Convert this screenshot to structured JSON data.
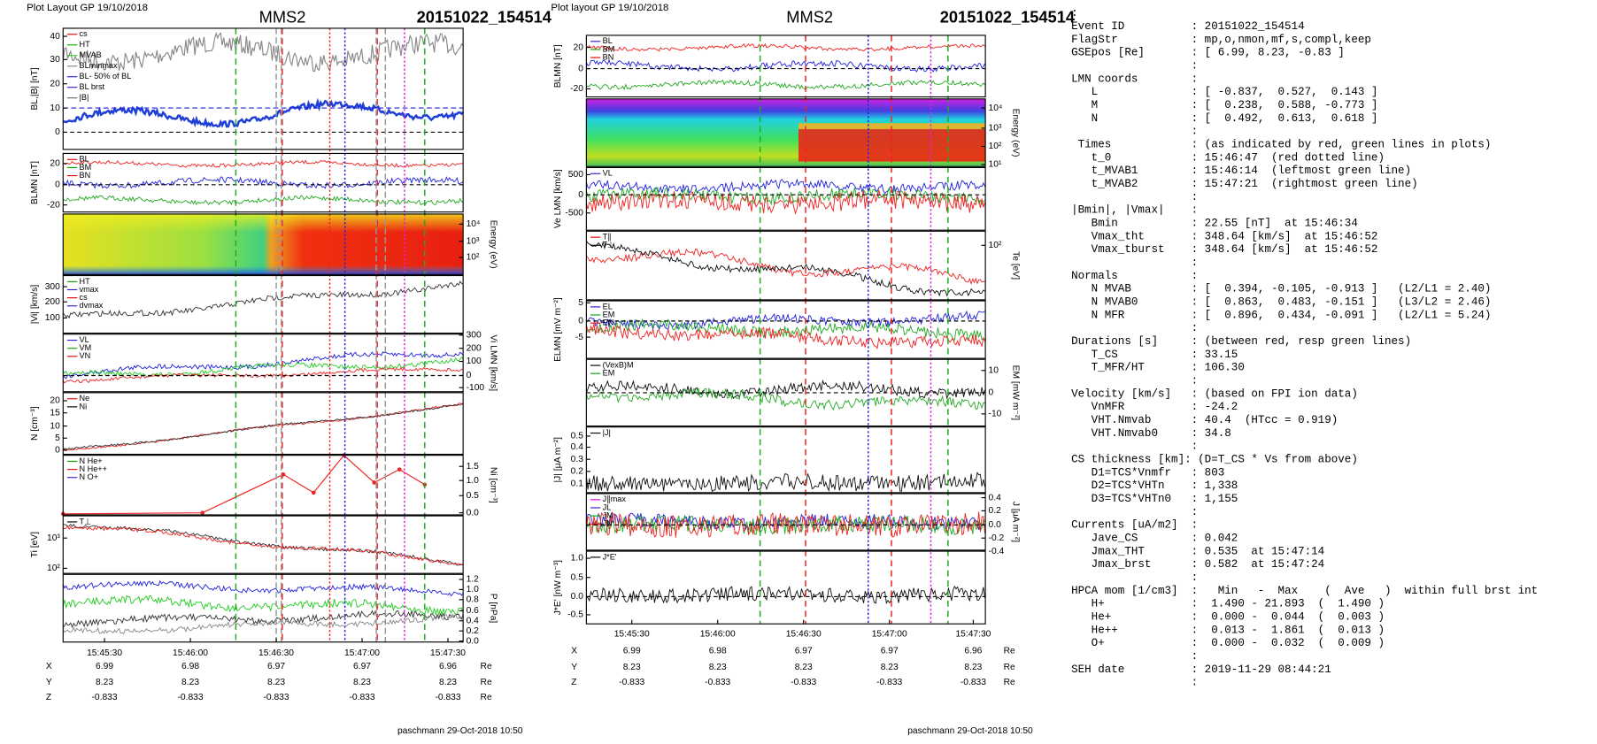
{
  "left_figure": {
    "header": {
      "layout": "Plot Layout GP 19/10/2018",
      "probe": "MMS2",
      "event": "20151022_154514"
    },
    "panels": [
      {
        "label": "BL,|B| [nT]",
        "ticks": [
          "40",
          "30",
          "20",
          "10",
          "0"
        ],
        "legend": [
          {
            "text": "cs",
            "color": "#e00"
          },
          {
            "text": "HT",
            "color": "#0a0"
          },
          {
            "text": "MVAB",
            "color": "#3c3"
          },
          {
            "text": "BLminmax",
            "color": "#888"
          },
          {
            "text": "BL- 50% of BL",
            "color": "#22d"
          },
          {
            "text": "BL brst",
            "color": "#22d"
          },
          {
            "text": "|B|",
            "color": "#666"
          }
        ]
      },
      {
        "label": "BLMN [nT]",
        "ticks": [
          "20",
          "0",
          "-20"
        ],
        "legend": [
          {
            "text": "BL",
            "color": "#e00"
          },
          {
            "text": "BM",
            "color": "#0a0"
          },
          {
            "text": "BN",
            "color": "#e00"
          }
        ]
      },
      {
        "label": "Energy (eV)",
        "ticks": [
          "10⁴",
          "10³",
          "10²"
        ],
        "legend": []
      },
      {
        "label": "|Vi| [km/s]",
        "ticks": [
          "300",
          "200",
          "100"
        ],
        "legend": [
          {
            "text": "HT",
            "color": "#0a0"
          },
          {
            "text": "vmax",
            "color": "#22d"
          },
          {
            "text": "cs",
            "color": "#e00"
          },
          {
            "text": "dvmax",
            "color": "#22d"
          }
        ]
      },
      {
        "label": "Vi LMN [km/s]",
        "ticks": [
          "300",
          "200",
          "100",
          "0",
          "-100"
        ],
        "legend": [
          {
            "text": "VL",
            "color": "#22d"
          },
          {
            "text": "VM",
            "color": "#0a0"
          },
          {
            "text": "VN",
            "color": "#e00"
          }
        ]
      },
      {
        "label": "N [cm⁻³]",
        "ticks": [
          "20",
          "15",
          "10",
          "5",
          "0"
        ],
        "legend": [
          {
            "text": "Ne",
            "color": "#e00"
          },
          {
            "text": "Ni",
            "color": "#000"
          }
        ]
      },
      {
        "label": "Ni [cm⁻³]",
        "ticks": [
          "1.5",
          "1.0",
          "0.5",
          "0.0"
        ],
        "legend": [
          {
            "text": "N He+",
            "color": "#0a0"
          },
          {
            "text": "N He++",
            "color": "#e00"
          },
          {
            "text": "N O+",
            "color": "#22d"
          }
        ]
      },
      {
        "label": "Ti [eV]",
        "ticks": [
          "10³",
          "10²"
        ],
        "legend": [
          {
            "text": "T⊥",
            "color": "#000"
          }
        ]
      },
      {
        "label": "P [nPa]",
        "ticks": [
          "1.2",
          "1.0",
          "0.8",
          "0.6",
          "0.4",
          "0.2",
          "0.0"
        ],
        "legend": []
      }
    ],
    "xticks": [
      "15:45:30",
      "15:46:00",
      "15:46:30",
      "15:47:00",
      "15:47:30"
    ],
    "ephemeris": [
      {
        "label": "X",
        "values": [
          "6.99",
          "6.98",
          "6.97",
          "6.97",
          "6.96"
        ],
        "unit": "Re"
      },
      {
        "label": "Y",
        "values": [
          "8.23",
          "8.23",
          "8.23",
          "8.23",
          "8.23"
        ],
        "unit": "Re"
      },
      {
        "label": "Z",
        "values": [
          "-0.833",
          "-0.833",
          "-0.833",
          "-0.833",
          "-0.833"
        ],
        "unit": "Re"
      }
    ],
    "footer": "paschmann 29-Oct-2018 10:50"
  },
  "middle_figure": {
    "header": {
      "layout": "Plot layout GP 19/10/2018",
      "probe": "MMS2",
      "event": "20151022_154514"
    },
    "panels": [
      {
        "label": "BLMN [nT]",
        "ticks": [
          "20",
          "0",
          "-20"
        ],
        "legend": [
          {
            "text": "BL",
            "color": "#22d"
          },
          {
            "text": "BM",
            "color": "#0a0"
          },
          {
            "text": "BN",
            "color": "#e00"
          }
        ]
      },
      {
        "label": "Energy (eV)",
        "ticks": [
          "10⁴",
          "10³",
          "10²",
          "10¹"
        ],
        "legend": []
      },
      {
        "label": "Ve LMN [km/s]",
        "ticks": [
          "500",
          "0",
          "-500"
        ],
        "legend": [
          {
            "text": "VL",
            "color": "#22d"
          }
        ]
      },
      {
        "label": "Te [eV]",
        "ticks": [
          "10²"
        ],
        "legend": [
          {
            "text": "T∥",
            "color": "#e00"
          },
          {
            "text": "T⊥",
            "color": "#000"
          }
        ]
      },
      {
        "label": "ELMN [mV m⁻²]",
        "ticks": [
          "5",
          "0",
          "-5"
        ],
        "legend": [
          {
            "text": "EL",
            "color": "#22d"
          },
          {
            "text": "EM",
            "color": "#0a0"
          },
          {
            "text": "EN",
            "color": "#e00"
          }
        ]
      },
      {
        "label": "EM [mW m⁻²]",
        "ticks": [
          "10",
          "0",
          "-10"
        ],
        "legend": [
          {
            "text": "(VexB)M",
            "color": "#000"
          },
          {
            "text": "EM",
            "color": "#0a0"
          }
        ]
      },
      {
        "label": "|J| [μA m⁻²]",
        "ticks": [
          "0.5",
          "0.4",
          "0.3",
          "0.2",
          "0.1"
        ],
        "legend": [
          {
            "text": "|J|",
            "color": "#000"
          }
        ]
      },
      {
        "label": "J [μA m⁻²]",
        "ticks": [
          "0.4",
          "0.2",
          "0.0",
          "-0.2",
          "-0.4"
        ],
        "legend": [
          {
            "text": "J∥max",
            "color": "#d0d"
          },
          {
            "text": "JL",
            "color": "#22d"
          },
          {
            "text": "JM",
            "color": "#0a0"
          },
          {
            "text": "JN",
            "color": "#e00"
          }
        ]
      },
      {
        "label": "J*E' [nW m⁻³]",
        "ticks": [
          "1.0",
          "0.5",
          "0.0",
          "-0.5"
        ],
        "legend": [
          {
            "text": "J*E'",
            "color": "#000"
          }
        ]
      }
    ],
    "xticks": [
      "15:45:30",
      "15:46:00",
      "15:46:30",
      "15:47:00",
      "15:47:30"
    ],
    "ephemeris": [
      {
        "label": "X",
        "values": [
          "6.99",
          "6.98",
          "6.97",
          "6.97",
          "6.96"
        ],
        "unit": "Re"
      },
      {
        "label": "Y",
        "values": [
          "8.23",
          "8.23",
          "8.23",
          "8.23",
          "8.23"
        ],
        "unit": "Re"
      },
      {
        "label": "Z",
        "values": [
          "-0.833",
          "-0.833",
          "-0.833",
          "-0.833",
          "-0.833"
        ],
        "unit": "Re"
      }
    ],
    "footer": "paschmann 29-Oct-2018 10:50"
  },
  "summary": {
    "lines": [
      ":",
      "Event ID          : 20151022_154514",
      "FlagStr           : mp,o,nmon,mf,s,compl,keep",
      "GSEpos [Re]       : [ 6.99, 8.23, -0.83 ]",
      "                  :",
      "LMN coords        :",
      "   L              : [ -0.837,  0.527,  0.143 ]",
      "   M              : [  0.238,  0.588, -0.773 ]",
      "   N              : [  0.492,  0.613,  0.618 ]",
      "                  :",
      " Times            : (as indicated by red, green lines in plots)",
      "   t_0            : 15:46:47  (red dotted line)",
      "   t_MVAB1        : 15:46:14  (leftmost green line)",
      "   t_MVAB2        : 15:47:21  (rightmost green line)",
      "                  :",
      "|Bmin|, |Vmax|    :",
      "   Bmin           : 22.55 [nT]  at 15:46:34",
      "   Vmax_tht       : 348.64 [km/s]  at 15:46:52",
      "   Vmax_tburst    : 348.64 [km/s]  at 15:46:52",
      "                  :",
      "Normals           :",
      "   N MVAB         : [  0.394, -0.105, -0.913 ]   (L2/L1 = 2.40)",
      "   N MVAB0        : [  0.863,  0.483, -0.151 ]   (L3/L2 = 2.46)",
      "   N MFR          : [  0.896,  0.434, -0.091 ]   (L2/L1 = 5.24)",
      "                  :",
      "Durations [s]     : (between red, resp green lines)",
      "   T_CS           : 33.15",
      "   T_MFR/HT       : 106.30",
      "                  :",
      "Velocity [km/s]   : (based on FPI ion data)",
      "   VnMFR          : -24.2",
      "   VHT.Nmvab      : 40.4  (HTcc = 0.919)",
      "   VHT.Nmvab0     : 34.8",
      "                  :",
      "CS thickness [km]: (D=T_CS * Vs from above)",
      "   D1=TCS*Vnmfr   : 803",
      "   D2=TCS*VHTn    : 1,338",
      "   D3=TCS*VHTn0   : 1,155",
      "                  :",
      "Currents [uA/m2]  :",
      "   Jave_CS        : 0.042",
      "   Jmax_THT       : 0.535  at 15:47:14",
      "   Jmax_brst      : 0.582  at 15:47:24",
      "                  :",
      "HPCA mom [1/cm3]  :   Min   -  Max    (  Ave   )  within full brst int",
      "   H+             :  1.490 - 21.893  (  1.490 )",
      "   He+            :  0.000 -  0.044  (  0.003 )",
      "   He++           :  0.013 -  1.861  (  0.013 )",
      "   O+             :  0.000 -  0.032  (  0.009 )",
      "                  :",
      "SEH date          : 2019-11-29 08:44:21",
      "                  :"
    ]
  }
}
